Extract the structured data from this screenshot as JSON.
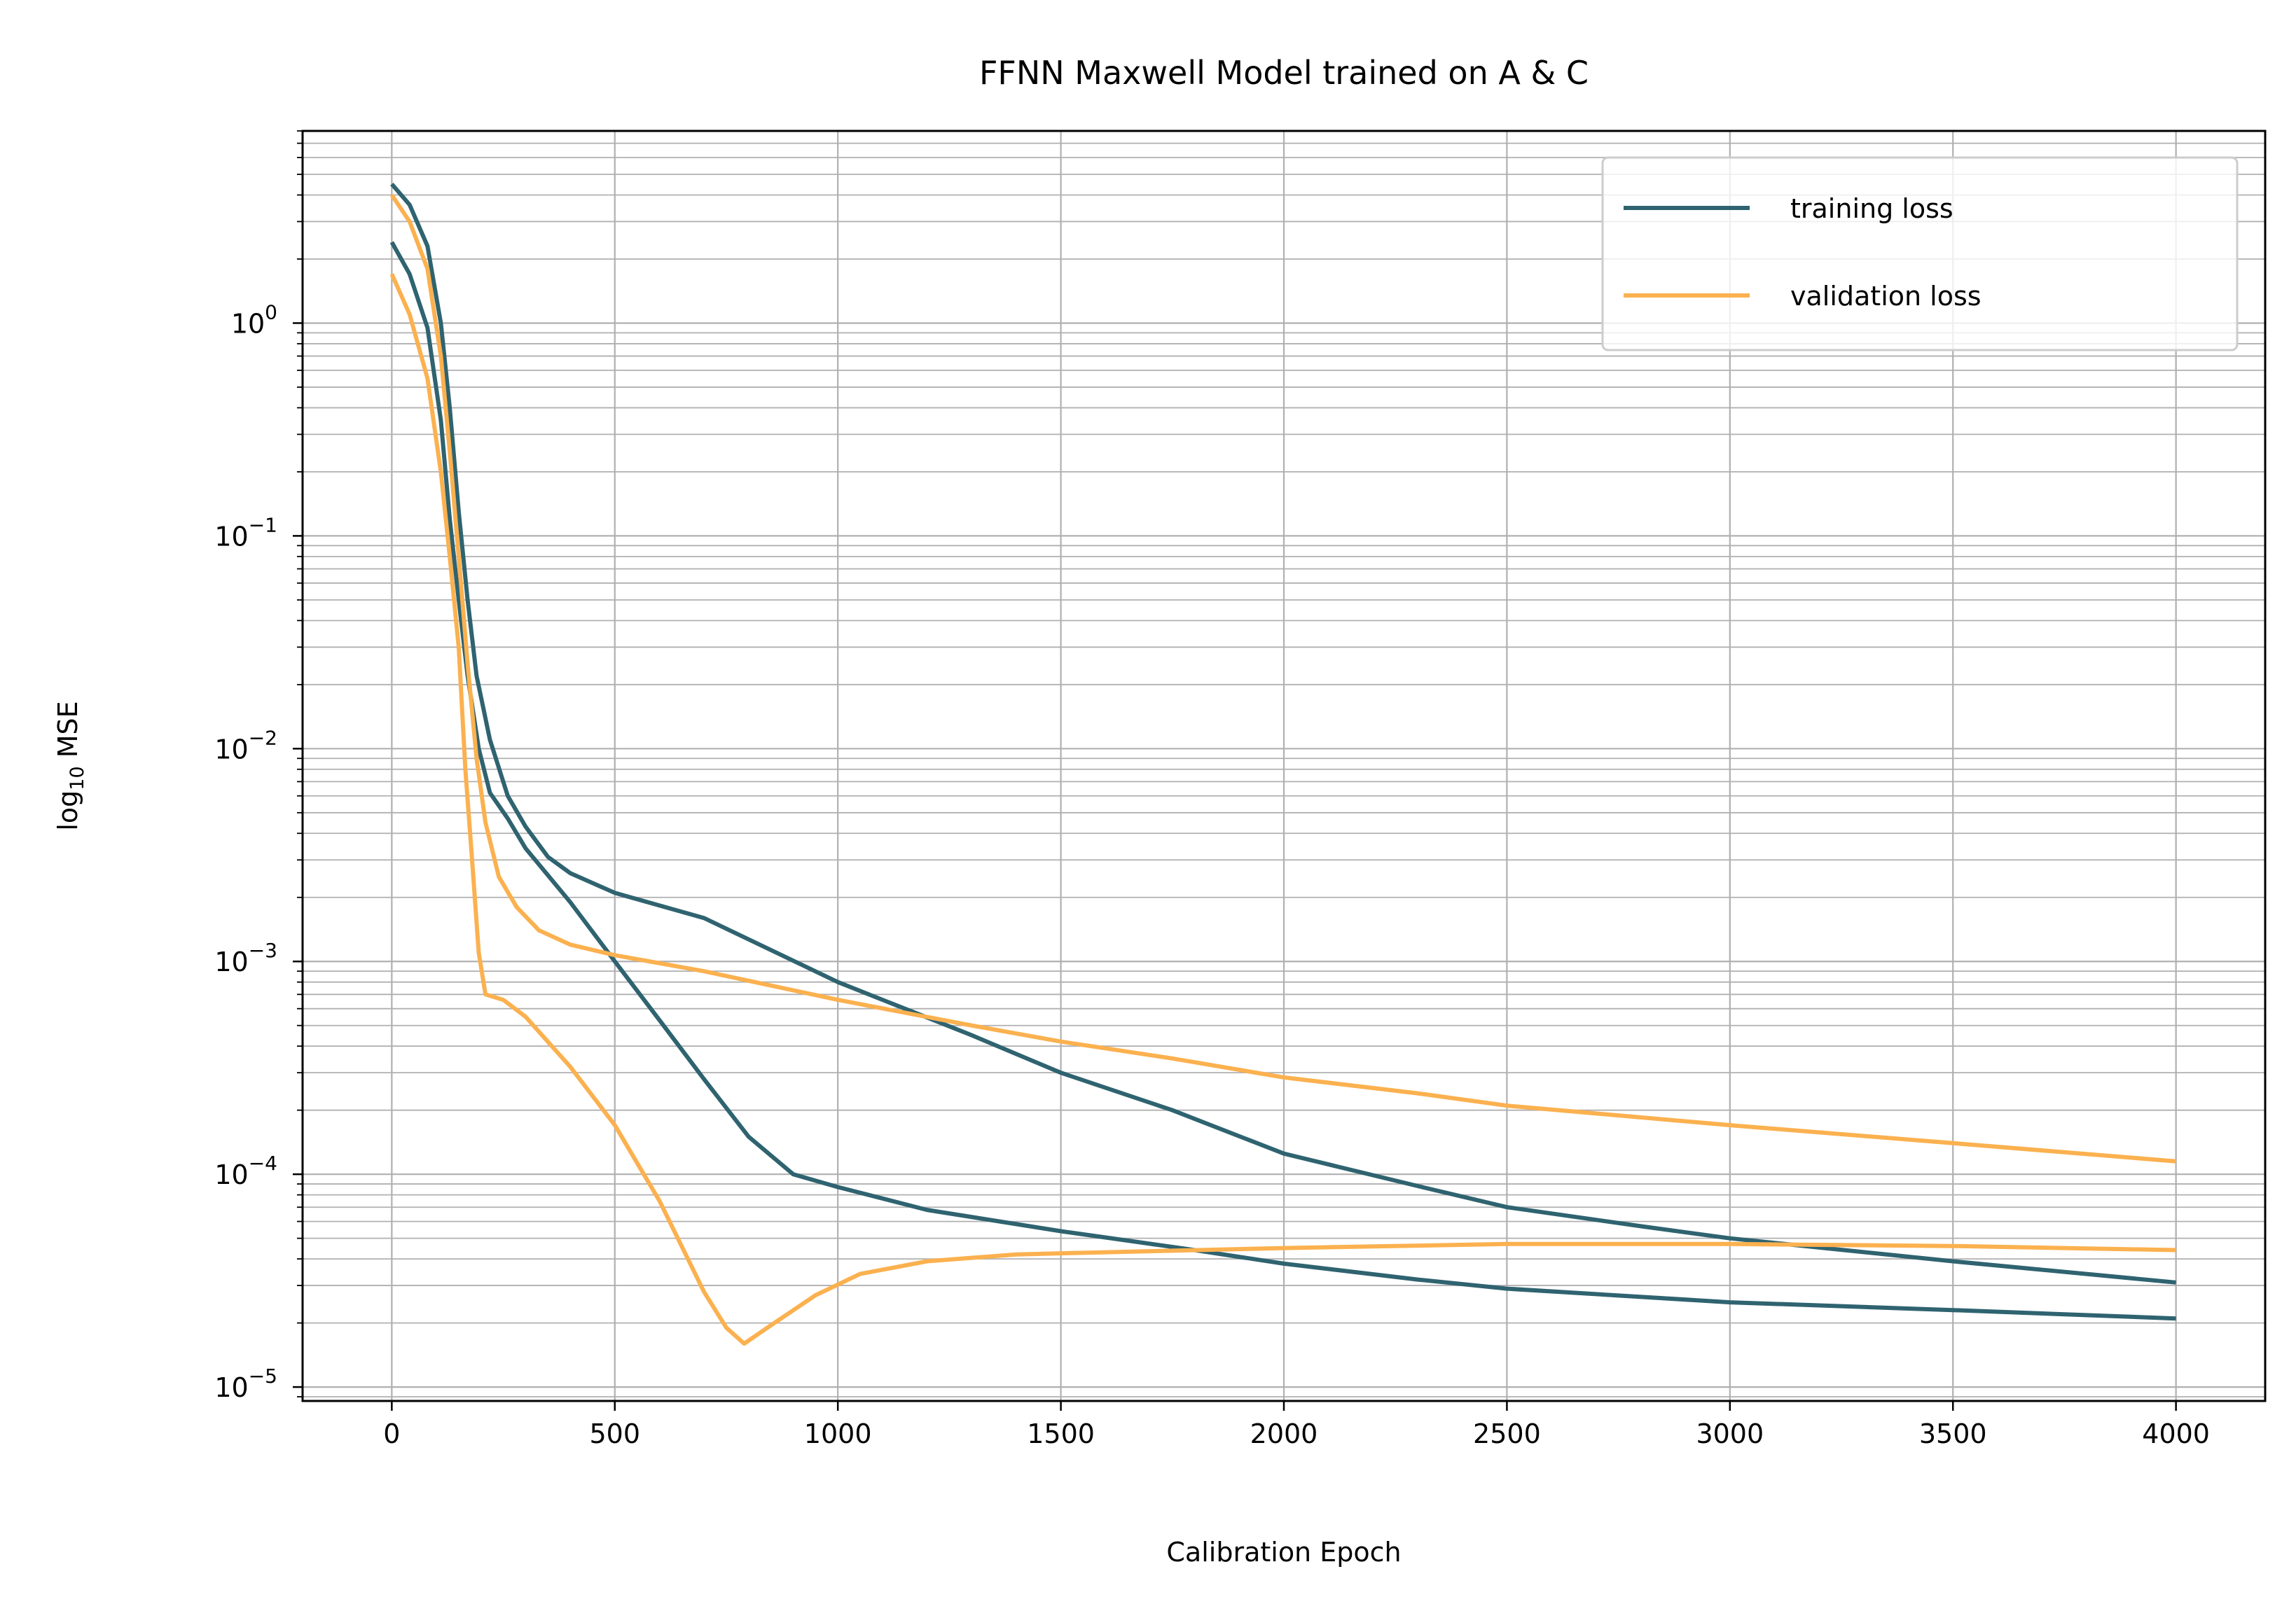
{
  "chart_data": {
    "type": "line",
    "title": "FFNN Maxwell Model trained on A & C",
    "xlabel": "Calibration Epoch",
    "ylabel_prefix": "log",
    "ylabel_sub": "10",
    "ylabel_suffix": " MSE",
    "xlim": [
      -200,
      4200
    ],
    "ylim": [
      8.6e-06,
      8.0
    ],
    "yscale": "log",
    "grid": true,
    "legend_position": "top-right",
    "x_ticks": [
      0,
      500,
      1000,
      1500,
      2000,
      2500,
      3000,
      3500,
      4000
    ],
    "x_tick_labels": [
      "0",
      "500",
      "1000",
      "1500",
      "2000",
      "2500",
      "3000",
      "3500",
      "4000"
    ],
    "y_ticks": [
      {
        "value": 1,
        "base": "10",
        "exp": "0"
      },
      {
        "value": 0.1,
        "base": "10",
        "exp": "−1"
      },
      {
        "value": 0.01,
        "base": "10",
        "exp": "−2"
      },
      {
        "value": 0.001,
        "base": "10",
        "exp": "−3"
      },
      {
        "value": 0.0001,
        "base": "10",
        "exp": "−4"
      },
      {
        "value": 1e-05,
        "base": "10",
        "exp": "−5"
      }
    ],
    "series": [
      {
        "name": "training loss",
        "color": "#2f6370",
        "in_legend": true,
        "points": [
          [
            0,
            4.5
          ],
          [
            40,
            3.6
          ],
          [
            80,
            2.3
          ],
          [
            110,
            1.0
          ],
          [
            130,
            0.4
          ],
          [
            150,
            0.13
          ],
          [
            170,
            0.05
          ],
          [
            190,
            0.022
          ],
          [
            220,
            0.011
          ],
          [
            260,
            0.006
          ],
          [
            300,
            0.0043
          ],
          [
            350,
            0.0031
          ],
          [
            400,
            0.0026
          ],
          [
            500,
            0.0021
          ],
          [
            700,
            0.0016
          ],
          [
            1000,
            0.0008
          ],
          [
            1300,
            0.00045
          ],
          [
            1500,
            0.0003
          ],
          [
            1750,
            0.0002
          ],
          [
            2000,
            0.000125
          ],
          [
            2300,
            8.8e-05
          ],
          [
            2500,
            7e-05
          ],
          [
            2800,
            5.7e-05
          ],
          [
            3000,
            5e-05
          ],
          [
            3500,
            3.9e-05
          ],
          [
            4000,
            3.1e-05
          ]
        ]
      },
      {
        "name": "training loss",
        "color": "#2f6370",
        "in_legend": false,
        "points": [
          [
            0,
            2.4
          ],
          [
            40,
            1.7
          ],
          [
            80,
            0.95
          ],
          [
            110,
            0.35
          ],
          [
            130,
            0.12
          ],
          [
            150,
            0.05
          ],
          [
            170,
            0.022
          ],
          [
            195,
            0.01
          ],
          [
            220,
            0.0062
          ],
          [
            260,
            0.0047
          ],
          [
            300,
            0.0034
          ],
          [
            400,
            0.0019
          ],
          [
            500,
            0.001
          ],
          [
            600,
            0.00053
          ],
          [
            700,
            0.00028
          ],
          [
            800,
            0.00015
          ],
          [
            900,
            0.0001
          ],
          [
            1000,
            8.7e-05
          ],
          [
            1200,
            6.8e-05
          ],
          [
            1500,
            5.4e-05
          ],
          [
            1800,
            4.4e-05
          ],
          [
            2000,
            3.8e-05
          ],
          [
            2300,
            3.2e-05
          ],
          [
            2500,
            2.9e-05
          ],
          [
            3000,
            2.5e-05
          ],
          [
            3500,
            2.3e-05
          ],
          [
            4000,
            2.1e-05
          ]
        ]
      },
      {
        "name": "validation loss",
        "color": "#fbb14f",
        "in_legend": true,
        "points": [
          [
            0,
            4.0
          ],
          [
            40,
            3.0
          ],
          [
            80,
            1.8
          ],
          [
            110,
            0.7
          ],
          [
            130,
            0.25
          ],
          [
            150,
            0.08
          ],
          [
            170,
            0.025
          ],
          [
            190,
            0.009
          ],
          [
            210,
            0.0045
          ],
          [
            240,
            0.0025
          ],
          [
            280,
            0.0018
          ],
          [
            330,
            0.0014
          ],
          [
            400,
            0.0012
          ],
          [
            500,
            0.00107
          ],
          [
            700,
            0.0009
          ],
          [
            1000,
            0.00066
          ],
          [
            1300,
            0.0005
          ],
          [
            1500,
            0.00042
          ],
          [
            1750,
            0.00035
          ],
          [
            2000,
            0.000285
          ],
          [
            2300,
            0.00024
          ],
          [
            2500,
            0.00021
          ],
          [
            3000,
            0.00017
          ],
          [
            3500,
            0.00014
          ],
          [
            4000,
            0.000115
          ]
        ]
      },
      {
        "name": "validation loss",
        "color": "#fbb14f",
        "in_legend": false,
        "points": [
          [
            0,
            1.7
          ],
          [
            40,
            1.1
          ],
          [
            80,
            0.55
          ],
          [
            110,
            0.2
          ],
          [
            130,
            0.08
          ],
          [
            150,
            0.03
          ],
          [
            165,
            0.008
          ],
          [
            180,
            0.003
          ],
          [
            195,
            0.0011
          ],
          [
            210,
            0.0007
          ],
          [
            250,
            0.00066
          ],
          [
            300,
            0.00055
          ],
          [
            400,
            0.00032
          ],
          [
            500,
            0.00017
          ],
          [
            600,
            7.5e-05
          ],
          [
            700,
            2.8e-05
          ],
          [
            750,
            1.9e-05
          ],
          [
            790,
            1.6e-05
          ],
          [
            850,
            1.95e-05
          ],
          [
            950,
            2.7e-05
          ],
          [
            1050,
            3.4e-05
          ],
          [
            1200,
            3.9e-05
          ],
          [
            1400,
            4.2e-05
          ],
          [
            1600,
            4.3e-05
          ],
          [
            2000,
            4.5e-05
          ],
          [
            2500,
            4.7e-05
          ],
          [
            3000,
            4.7e-05
          ],
          [
            3500,
            4.6e-05
          ],
          [
            4000,
            4.4e-05
          ]
        ]
      }
    ]
  }
}
